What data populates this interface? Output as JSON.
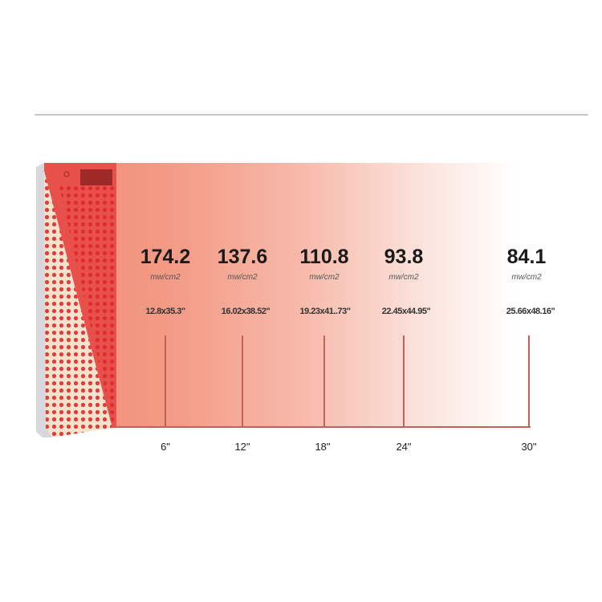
{
  "measurements": [
    {
      "irradiance": "174.2",
      "unit": "mw/cm2",
      "area": "12.8x35.3\"",
      "distance": "6\""
    },
    {
      "irradiance": "137.6",
      "unit": "mw/cm2",
      "area": "16.02x38.52\"",
      "distance": "12\""
    },
    {
      "irradiance": "110.8",
      "unit": "mw/cm2",
      "area": "19.23x41..73\"",
      "distance": "18\""
    },
    {
      "irradiance": "93.8",
      "unit": "mw/cm2",
      "area": "22.45x44.95\"",
      "distance": "24\""
    },
    {
      "irradiance": "84.1",
      "unit": "mw/cm2",
      "area": "25.66x48.16\"",
      "distance": "30\""
    }
  ],
  "colors": {
    "panel": "#f08a74",
    "led": "#e5383b",
    "line": "#c4605a"
  }
}
